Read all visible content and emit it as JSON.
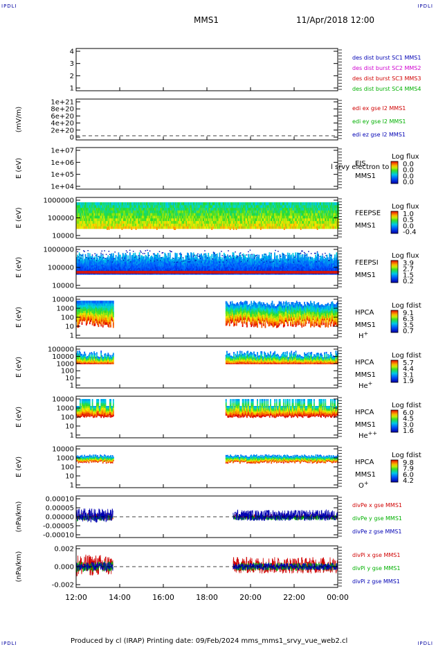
{
  "header": {
    "spacecraft": "MMS1",
    "datetime": "11/Apr/2018 12:00",
    "corner_label": "IPDLI",
    "footer": "Produced by cl (IRAP)   Printing date: 09/Feb/2024   mms_mms1_srvy_vue_web2.cl"
  },
  "chart_data": [
    {
      "type": "line",
      "panel": "burst",
      "yticks": [
        "4",
        "3",
        "2",
        "1"
      ],
      "ylim": [
        0.5,
        4.5
      ],
      "legend": [
        {
          "text": "des dist burst SC1 MMS1",
          "color": "#0000b4"
        },
        {
          "text": "des dist burst SC2 MMS2",
          "color": "#d000d0"
        },
        {
          "text": "des dist burst SC3 MMS3",
          "color": "#d00000"
        },
        {
          "text": "des dist burst SC4 MMS4",
          "color": "#00b000"
        }
      ]
    },
    {
      "type": "line",
      "panel": "edi",
      "ylabel": "(mV/m)",
      "yticks": [
        "1e+21",
        "8e+20",
        "6e+20",
        "4e+20",
        "2e+20",
        "0"
      ],
      "legend": [
        {
          "text": "edi ex gse l2 MMS1",
          "color": "#d00000"
        },
        {
          "text": "edi ey gse l2 MMS1",
          "color": "#00b000"
        },
        {
          "text": "edi ez gse l2 MMS1",
          "color": "#0000b4"
        }
      ]
    },
    {
      "type": "heatmap",
      "panel": "eis",
      "ylabel": "E (eV)",
      "yticks": [
        "1e+07",
        "1e+06",
        "1e+05",
        "1e+04"
      ],
      "ylim": [
        10000,
        10000000
      ],
      "scale": "log",
      "label1": "EIS",
      "label2": "MMS1",
      "overlay_text": "l srvy electron to",
      "cbar_title": "Log flux",
      "cbar_ticks": [
        "0.0",
        "0.0",
        "0.0",
        "0.0"
      ]
    },
    {
      "type": "heatmap",
      "panel": "feepse",
      "ylabel": "E (eV)",
      "yticks": [
        "1000000",
        "100000",
        "10000"
      ],
      "ylim": [
        10000,
        1000000
      ],
      "scale": "log",
      "label1": "FEEPSE",
      "label2": "MMS1",
      "cbar_title": "Log flux",
      "cbar_ticks": [
        "1.0",
        "0.5",
        "0.0",
        "-0.4"
      ],
      "coverage": [
        [
          0,
          12
        ]
      ]
    },
    {
      "type": "heatmap",
      "panel": "feepsi",
      "ylabel": "E (eV)",
      "yticks": [
        "1000000",
        "100000",
        "10000"
      ],
      "ylim": [
        10000,
        1000000
      ],
      "scale": "log",
      "label1": "FEEPSI",
      "label2": "MMS1",
      "cbar_title": "Log flux",
      "cbar_ticks": [
        "3.9",
        "2.7",
        "1.5",
        "0.2"
      ],
      "coverage": [
        [
          0,
          12
        ]
      ]
    },
    {
      "type": "heatmap",
      "panel": "hpca-h",
      "ylabel": "E (eV)",
      "yticks": [
        "10000",
        "1000",
        "100",
        "10",
        "1"
      ],
      "ylim": [
        1,
        40000
      ],
      "scale": "log",
      "label1": "HPCA",
      "label2": "MMS1",
      "species": "H",
      "species_sup": "+",
      "cbar_title": "Log fdist",
      "cbar_ticks": [
        "9.1",
        "6.3",
        "3.5",
        "0.7"
      ],
      "coverage": [
        [
          0,
          1.7
        ],
        [
          6.85,
          12
        ]
      ]
    },
    {
      "type": "heatmap",
      "panel": "hpca-he1",
      "ylabel": "E (eV)",
      "yticks": [
        "100000",
        "10000",
        "1000",
        "100",
        "10",
        "1"
      ],
      "ylim": [
        1,
        100000
      ],
      "scale": "log",
      "label1": "HPCA",
      "label2": "MMS1",
      "species": "He",
      "species_sup": "+",
      "cbar_title": "Log fdist",
      "cbar_ticks": [
        "5.7",
        "4.4",
        "3.1",
        "1.9"
      ],
      "coverage": [
        [
          0,
          1.7
        ],
        [
          6.85,
          12
        ]
      ]
    },
    {
      "type": "heatmap",
      "panel": "hpca-he2",
      "ylabel": "E (eV)",
      "yticks": [
        "10000",
        "1000",
        "100",
        "10",
        "1"
      ],
      "ylim": [
        1,
        10000
      ],
      "scale": "log",
      "label1": "HPCA",
      "label2": "MMS1",
      "species": "He",
      "species_sup": "++",
      "cbar_title": "Log fdist",
      "cbar_ticks": [
        "6.0",
        "4.5",
        "3.0",
        "1.6"
      ],
      "coverage": [
        [
          0,
          1.7
        ],
        [
          6.85,
          12
        ]
      ]
    },
    {
      "type": "heatmap",
      "panel": "hpca-o",
      "ylabel": "E (eV)",
      "yticks": [
        "10000",
        "1000",
        "100",
        "10",
        "1"
      ],
      "ylim": [
        1,
        10000
      ],
      "scale": "log",
      "label1": "HPCA",
      "label2": "MMS1",
      "species": "O",
      "species_sup": "+",
      "cbar_title": "Log fdist",
      "cbar_ticks": [
        "9.8",
        "7.9",
        "6.0",
        "4.2"
      ],
      "coverage": [
        [
          0,
          1.7
        ],
        [
          6.85,
          12
        ]
      ]
    },
    {
      "type": "line",
      "panel": "divpe",
      "ylabel": "(nPa/km)",
      "yticks": [
        "0.00010",
        "0.00005",
        "0.00000",
        "-0.00005",
        "-0.00010"
      ],
      "ylim": [
        -0.00015,
        0.00015
      ],
      "coverage": [
        [
          0,
          1.7
        ],
        [
          7.2,
          12
        ]
      ],
      "legend": [
        {
          "text": "divPe x gse MMS1",
          "color": "#d00000"
        },
        {
          "text": "divPe y gse MMS1",
          "color": "#00b000"
        },
        {
          "text": "divPe z gse MMS1",
          "color": "#0000b4"
        }
      ]
    },
    {
      "type": "line",
      "panel": "divpi",
      "ylabel": "(nPa/km)",
      "yticks": [
        "0.002",
        "0.000",
        "-0.002"
      ],
      "ylim": [
        -0.003,
        0.003
      ],
      "coverage": [
        [
          0,
          1.7
        ],
        [
          7.2,
          12
        ]
      ],
      "legend": [
        {
          "text": "divPi x gse MMS1",
          "color": "#d00000"
        },
        {
          "text": "divPi y gse MMS1",
          "color": "#00b000"
        },
        {
          "text": "divPi z gse MMS1",
          "color": "#0000b4"
        }
      ]
    }
  ],
  "xaxis": {
    "ticks": [
      "12:00",
      "14:00",
      "16:00",
      "18:00",
      "20:00",
      "22:00",
      "00:00"
    ]
  }
}
